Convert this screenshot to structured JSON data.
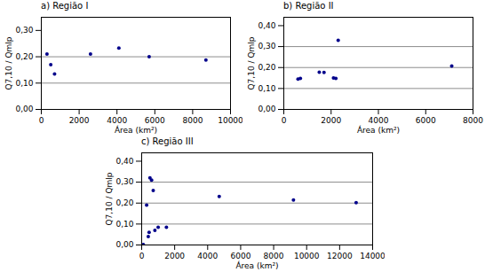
{
  "chart_data": [
    {
      "type": "scatter",
      "title": "a) Região I",
      "x": [
        300,
        500,
        700,
        2600,
        4100,
        5700,
        8700
      ],
      "values": [
        0.21,
        0.17,
        0.135,
        0.21,
        0.233,
        0.2,
        0.188
      ],
      "color": "#00008B",
      "xlim": [
        0,
        10000
      ],
      "ylim": [
        0.0,
        0.35
      ],
      "xticks": [
        0,
        2000,
        4000,
        6000,
        8000,
        10000
      ],
      "yticks": [
        {
          "value": 0.0,
          "label": "0,00"
        },
        {
          "value": 0.1,
          "label": "0,10"
        },
        {
          "value": 0.2,
          "label": "0,20"
        },
        {
          "value": 0.3,
          "label": "0,30"
        }
      ],
      "hlines": [
        0.1,
        0.2
      ],
      "xlabel": "Área (km²)",
      "ylabel": "Q7,10 / Qmlp",
      "grid": false
    },
    {
      "type": "scatter",
      "title": "b) Região II",
      "x": [
        600,
        700,
        1500,
        1700,
        2100,
        2200,
        2300,
        7100
      ],
      "values": [
        0.145,
        0.148,
        0.178,
        0.177,
        0.15,
        0.148,
        0.33,
        0.207
      ],
      "color": "#00008B",
      "xlim": [
        0,
        8000
      ],
      "ylim": [
        0.0,
        0.44
      ],
      "xticks": [
        0,
        2000,
        4000,
        6000,
        8000
      ],
      "yticks": [
        {
          "value": 0.0,
          "label": "0,00"
        },
        {
          "value": 0.1,
          "label": "0,10"
        },
        {
          "value": 0.2,
          "label": "0,20"
        },
        {
          "value": 0.3,
          "label": "0,30"
        },
        {
          "value": 0.4,
          "label": "0,40"
        }
      ],
      "hlines": [
        0.1,
        0.2,
        0.3
      ],
      "xlabel": "Área (km²)",
      "ylabel": "Q7,10 / Qmlp",
      "grid": false
    },
    {
      "type": "scatter",
      "title": "c) Região III",
      "x": [
        100,
        300,
        400,
        450,
        500,
        600,
        700,
        800,
        1000,
        1500,
        4700,
        9200,
        13000
      ],
      "values": [
        0.002,
        0.19,
        0.04,
        0.06,
        0.32,
        0.31,
        0.26,
        0.07,
        0.085,
        0.085,
        0.232,
        0.215,
        0.202
      ],
      "color": "#00008B",
      "xlim": [
        0,
        14000
      ],
      "ylim": [
        0.0,
        0.44
      ],
      "xticks": [
        0,
        2000,
        4000,
        6000,
        8000,
        10000,
        12000,
        14000
      ],
      "yticks": [
        {
          "value": 0.0,
          "label": "0,00"
        },
        {
          "value": 0.1,
          "label": "0,10"
        },
        {
          "value": 0.2,
          "label": "0,20"
        },
        {
          "value": 0.3,
          "label": "0,30"
        },
        {
          "value": 0.4,
          "label": "0,40"
        }
      ],
      "hlines": [
        0.1,
        0.2,
        0.3
      ],
      "xlabel": "Área (km²)",
      "ylabel": "Q7,10 / Qmlp",
      "grid": false
    }
  ]
}
